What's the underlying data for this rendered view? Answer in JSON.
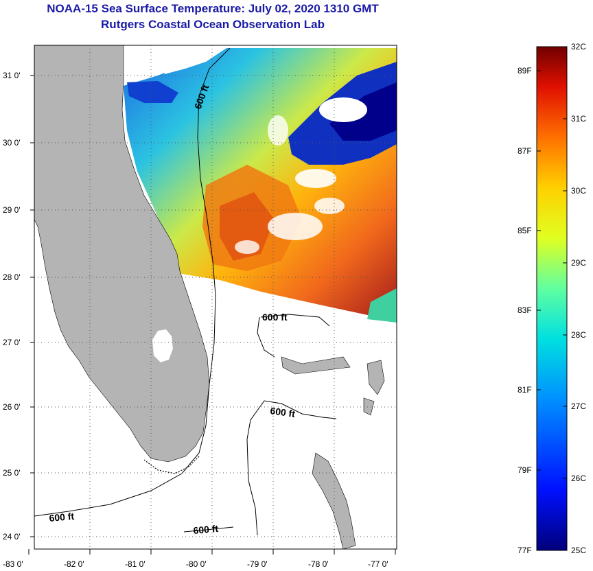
{
  "header": {
    "title": "NOAA-15 Sea Surface Temperature:  July 02, 2020 1310 GMT",
    "subtitle": "Rutgers Coastal Ocean Observation Lab"
  },
  "map": {
    "lon_labels": [
      "-83 0'",
      "-82 0'",
      "-81 0'",
      "-80 0'",
      "-79 0'",
      "-78 0'",
      "-77 0'"
    ],
    "lat_labels": [
      "31 0'",
      "30 0'",
      "29 0'",
      "28 0'",
      "27 0'",
      "26 0'",
      "25 0'",
      "24 0'"
    ],
    "contour_labels": [
      "600 ft",
      "600 ft",
      "600 ft",
      "600 ft",
      "600 ft"
    ]
  },
  "colorbar": {
    "fahrenheit_labels": [
      "89F",
      "87F",
      "85F",
      "83F",
      "81F",
      "79F",
      "77F"
    ],
    "celsius_labels": [
      "32C",
      "31C",
      "30C",
      "29C",
      "28C",
      "27C",
      "26C",
      "25C"
    ]
  },
  "colors": {
    "title": "#1a1aa6",
    "land": "#b4b4b4",
    "cold": "#00008b",
    "warm": "#ff6600",
    "hot": "#7a0000"
  }
}
